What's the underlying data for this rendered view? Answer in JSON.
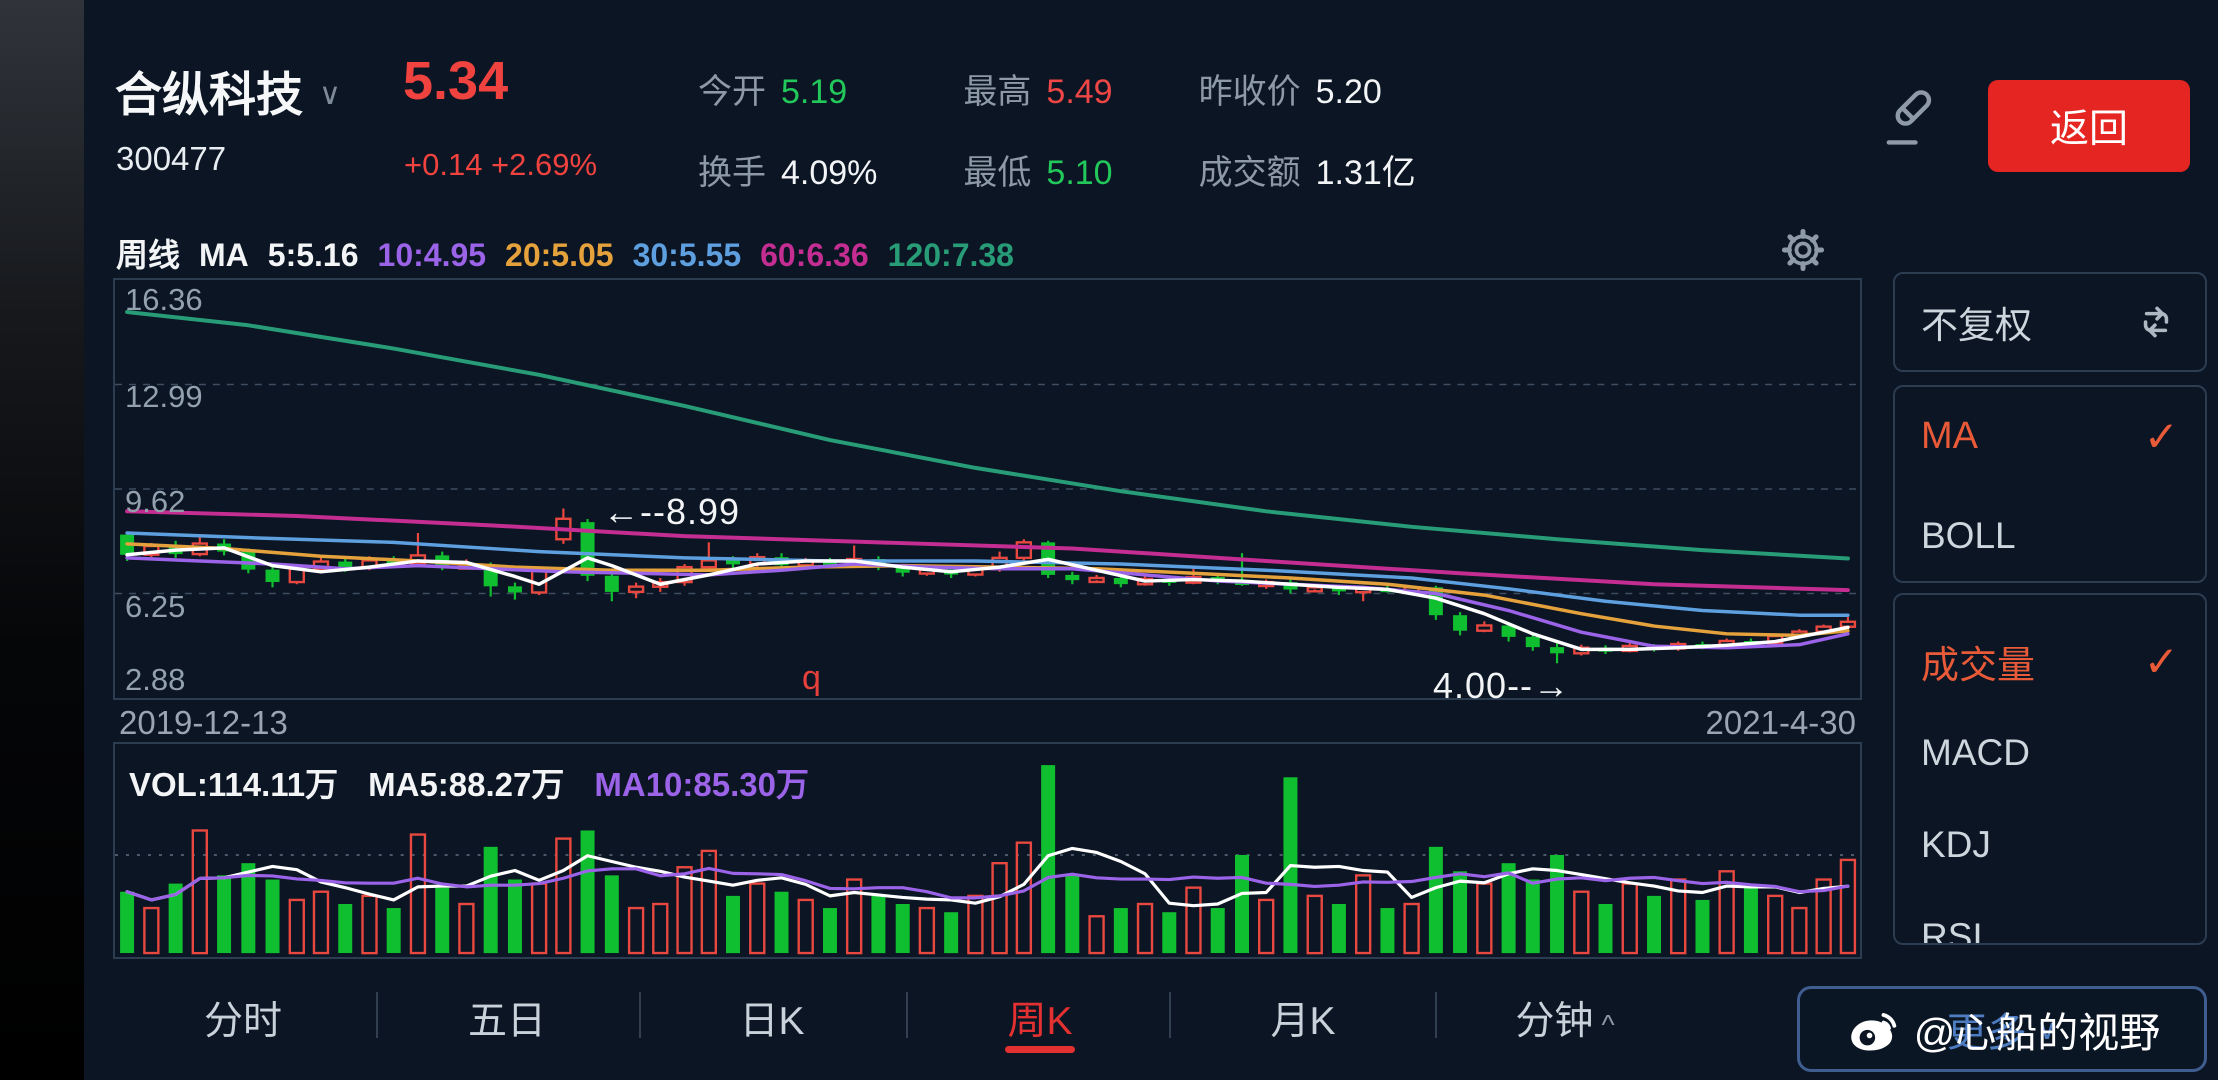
{
  "header": {
    "stock_name": "合纵科技",
    "stock_code": "300477",
    "price": "5.34",
    "change": "+0.14 +2.69%",
    "stats": [
      {
        "label": "今开",
        "value": "5.19",
        "color": "green"
      },
      {
        "label": "最高",
        "value": "5.49",
        "color": "red"
      },
      {
        "label": "昨收价",
        "value": "5.20",
        "color": "white"
      },
      {
        "label": "换手",
        "value": "4.09%",
        "color": "white"
      },
      {
        "label": "最低",
        "value": "5.10",
        "color": "green"
      },
      {
        "label": "成交额",
        "value": "1.31亿",
        "color": "white"
      }
    ],
    "back_label": "返回"
  },
  "indicator_bar": {
    "period_label": "周线",
    "ma_prefix": "MA",
    "items": [
      {
        "text": "5:5.16",
        "color": "#f2f4f6"
      },
      {
        "text": "10:4.95",
        "color": "#9b63e8"
      },
      {
        "text": "20:5.05",
        "color": "#e5a23c"
      },
      {
        "text": "30:5.55",
        "color": "#5e9fe0"
      },
      {
        "text": "60:6.36",
        "color": "#c42d92"
      },
      {
        "text": "120:7.38",
        "color": "#279c77"
      }
    ]
  },
  "dates": {
    "start": "2019-12-13",
    "end": "2021-4-30"
  },
  "volume_pane": {
    "vol_label": "VOL:114.11万",
    "ma5_label": "MA5:88.27万",
    "ma10_label": "MA10:85.30万"
  },
  "sidebar": {
    "adjust_box": {
      "label": "不复权"
    },
    "overlay_box": {
      "items": [
        {
          "label": "MA",
          "active": true
        },
        {
          "label": "BOLL",
          "active": false
        }
      ]
    },
    "indicator_box": {
      "items": [
        {
          "label": "成交量",
          "active": true
        },
        {
          "label": "MACD",
          "active": false
        },
        {
          "label": "KDJ",
          "active": false
        },
        {
          "label": "RSI",
          "active": false
        }
      ]
    }
  },
  "tabs": [
    {
      "label": "分时",
      "active": false
    },
    {
      "label": "五日",
      "active": false
    },
    {
      "label": "日K",
      "active": false
    },
    {
      "label": "周K",
      "active": true
    },
    {
      "label": "月K",
      "active": false
    },
    {
      "label": "分钟",
      "active": false,
      "caret": "^"
    }
  ],
  "watermark": {
    "behind_label": "更多",
    "behind_caret": "∨",
    "text": "@心船的视野"
  },
  "chart_data": {
    "type": "candlestick",
    "period": "weekly",
    "title": "合纵科技 300477 周K",
    "x_range": [
      "2019-12-13",
      "2021-4-30"
    ],
    "ylim": [
      2.88,
      16.36
    ],
    "y_ticks": [
      16.36,
      12.99,
      9.62,
      6.25,
      2.88
    ],
    "colors": {
      "up": "#e8483f",
      "down": "#10bf2f"
    },
    "candles": [
      [
        8.15,
        8.25,
        7.3,
        7.5
      ],
      [
        7.5,
        7.88,
        7.42,
        7.78
      ],
      [
        7.78,
        7.95,
        7.4,
        7.52
      ],
      [
        7.52,
        8.1,
        7.45,
        7.86
      ],
      [
        7.86,
        8.0,
        7.48,
        7.6
      ],
      [
        7.6,
        7.7,
        6.9,
        7.02
      ],
      [
        7.02,
        7.15,
        6.45,
        6.62
      ],
      [
        6.62,
        7.15,
        6.55,
        7.05
      ],
      [
        7.05,
        7.45,
        6.95,
        7.28
      ],
      [
        7.28,
        7.4,
        6.95,
        7.1
      ],
      [
        7.1,
        7.45,
        7.0,
        7.32
      ],
      [
        7.32,
        7.45,
        7.08,
        7.2
      ],
      [
        7.2,
        8.2,
        7.12,
        7.48
      ],
      [
        7.48,
        7.6,
        7.0,
        7.12
      ],
      [
        7.12,
        7.35,
        7.02,
        7.18
      ],
      [
        7.18,
        7.25,
        6.15,
        6.48
      ],
      [
        6.48,
        6.6,
        6.05,
        6.28
      ],
      [
        6.28,
        7.1,
        6.2,
        7.0
      ],
      [
        8.0,
        8.99,
        7.85,
        8.66
      ],
      [
        8.55,
        8.65,
        6.65,
        6.82
      ],
      [
        6.82,
        7.0,
        6.0,
        6.3
      ],
      [
        6.3,
        6.6,
        6.1,
        6.47
      ],
      [
        6.47,
        6.75,
        6.3,
        6.62
      ],
      [
        6.62,
        7.2,
        6.5,
        7.1
      ],
      [
        7.1,
        7.9,
        7.0,
        7.32
      ],
      [
        7.32,
        7.45,
        7.05,
        7.2
      ],
      [
        7.2,
        7.55,
        7.1,
        7.42
      ],
      [
        7.42,
        7.55,
        7.05,
        7.16
      ],
      [
        7.16,
        7.4,
        7.05,
        7.3
      ],
      [
        7.3,
        7.4,
        7.08,
        7.2
      ],
      [
        7.2,
        7.8,
        7.1,
        7.36
      ],
      [
        7.36,
        7.45,
        7.0,
        7.11
      ],
      [
        7.11,
        7.2,
        6.8,
        6.92
      ],
      [
        6.92,
        7.1,
        6.82,
        7.02
      ],
      [
        7.02,
        7.1,
        6.75,
        6.86
      ],
      [
        6.86,
        7.15,
        6.8,
        7.03
      ],
      [
        7.03,
        7.6,
        6.95,
        7.4
      ],
      [
        7.4,
        8.0,
        7.3,
        7.9
      ],
      [
        7.9,
        7.95,
        6.75,
        6.85
      ],
      [
        6.85,
        6.95,
        6.55,
        6.68
      ],
      [
        6.68,
        6.85,
        6.6,
        6.75
      ],
      [
        6.75,
        6.8,
        6.45,
        6.55
      ],
      [
        6.55,
        6.8,
        6.5,
        6.72
      ],
      [
        6.72,
        6.8,
        6.5,
        6.6
      ],
      [
        6.6,
        7.1,
        6.55,
        6.78
      ],
      [
        6.78,
        6.85,
        6.55,
        6.65
      ],
      [
        6.65,
        7.55,
        6.5,
        6.58
      ],
      [
        6.58,
        6.7,
        6.4,
        6.62
      ],
      [
        6.62,
        6.7,
        6.25,
        6.38
      ],
      [
        6.38,
        6.55,
        6.3,
        6.45
      ],
      [
        6.45,
        6.5,
        6.2,
        6.32
      ],
      [
        6.32,
        6.5,
        6.0,
        6.42
      ],
      [
        6.42,
        6.55,
        6.28,
        6.36
      ],
      [
        6.36,
        6.5,
        6.25,
        6.45
      ],
      [
        6.45,
        6.5,
        5.4,
        5.55
      ],
      [
        5.55,
        5.65,
        4.9,
        5.05
      ],
      [
        5.05,
        5.35,
        5.0,
        5.22
      ],
      [
        5.22,
        5.3,
        4.7,
        4.85
      ],
      [
        4.85,
        4.95,
        4.4,
        4.52
      ],
      [
        4.52,
        4.75,
        4.0,
        4.32
      ],
      [
        4.32,
        4.6,
        4.25,
        4.5
      ],
      [
        4.5,
        4.58,
        4.3,
        4.4
      ],
      [
        4.4,
        4.65,
        4.35,
        4.56
      ],
      [
        4.56,
        4.62,
        4.38,
        4.48
      ],
      [
        4.48,
        4.7,
        4.4,
        4.62
      ],
      [
        4.62,
        4.7,
        4.45,
        4.53
      ],
      [
        4.53,
        4.8,
        4.48,
        4.72
      ],
      [
        4.72,
        4.8,
        4.55,
        4.65
      ],
      [
        4.65,
        4.95,
        4.6,
        4.88
      ],
      [
        4.88,
        5.1,
        4.8,
        5.02
      ],
      [
        5.02,
        5.25,
        4.95,
        5.18
      ],
      [
        5.18,
        5.49,
        5.1,
        5.34
      ]
    ],
    "volumes": [
      75,
      55,
      85,
      150,
      95,
      110,
      90,
      65,
      75,
      60,
      70,
      55,
      145,
      80,
      60,
      130,
      90,
      85,
      140,
      150,
      95,
      55,
      60,
      105,
      125,
      70,
      85,
      75,
      65,
      55,
      90,
      70,
      60,
      55,
      50,
      70,
      110,
      135,
      230,
      95,
      45,
      55,
      60,
      50,
      80,
      55,
      120,
      65,
      215,
      70,
      60,
      95,
      55,
      60,
      130,
      100,
      85,
      110,
      90,
      120,
      75,
      60,
      85,
      70,
      90,
      65,
      100,
      80,
      70,
      55,
      90,
      114
    ],
    "volume_ylim": [
      0,
      240
    ],
    "volume_grid": 120,
    "volume_ma": [
      {
        "name": "MA5",
        "window": 5,
        "color": "#ffffff"
      },
      {
        "name": "MA10",
        "window": 10,
        "color": "#9b63e8"
      }
    ],
    "ma_lines": [
      {
        "name": "MA120",
        "color": "#279c77",
        "width": 4,
        "points": [
          [
            1,
            15.33
          ],
          [
            6,
            14.9
          ],
          [
            12,
            14.15
          ],
          [
            18,
            13.3
          ],
          [
            24,
            12.3
          ],
          [
            30,
            11.2
          ],
          [
            36,
            10.3
          ],
          [
            42,
            9.55
          ],
          [
            48,
            8.9
          ],
          [
            54,
            8.4
          ],
          [
            60,
            8.0
          ],
          [
            66,
            7.65
          ],
          [
            72,
            7.38
          ]
        ]
      },
      {
        "name": "MA60",
        "color": "#c42d92",
        "width": 4,
        "points": [
          [
            1,
            8.9
          ],
          [
            8,
            8.75
          ],
          [
            16,
            8.45
          ],
          [
            24,
            8.1
          ],
          [
            32,
            7.9
          ],
          [
            40,
            7.7
          ],
          [
            48,
            7.3
          ],
          [
            56,
            6.9
          ],
          [
            64,
            6.55
          ],
          [
            72,
            6.36
          ]
        ]
      },
      {
        "name": "MA30",
        "color": "#5e9fe0",
        "width": 3.5,
        "points": [
          [
            1,
            8.2
          ],
          [
            6,
            8.05
          ],
          [
            12,
            7.9
          ],
          [
            18,
            7.6
          ],
          [
            24,
            7.4
          ],
          [
            30,
            7.3
          ],
          [
            36,
            7.3
          ],
          [
            42,
            7.2
          ],
          [
            48,
            7.0
          ],
          [
            54,
            6.75
          ],
          [
            58,
            6.4
          ],
          [
            62,
            6.0
          ],
          [
            66,
            5.7
          ],
          [
            70,
            5.55
          ],
          [
            72,
            5.55
          ]
        ]
      },
      {
        "name": "MA20",
        "color": "#e5a23c",
        "width": 3.5,
        "points": [
          [
            1,
            7.85
          ],
          [
            5,
            7.7
          ],
          [
            9,
            7.45
          ],
          [
            13,
            7.3
          ],
          [
            17,
            7.1
          ],
          [
            21,
            7.0
          ],
          [
            25,
            7.0
          ],
          [
            29,
            7.1
          ],
          [
            33,
            7.15
          ],
          [
            37,
            7.1
          ],
          [
            41,
            7.05
          ],
          [
            45,
            6.9
          ],
          [
            49,
            6.75
          ],
          [
            53,
            6.55
          ],
          [
            57,
            6.2
          ],
          [
            61,
            5.6
          ],
          [
            64,
            5.2
          ],
          [
            67,
            4.95
          ],
          [
            70,
            4.9
          ],
          [
            72,
            5.05
          ]
        ]
      },
      {
        "name": "MA10",
        "color": "#9b63e8",
        "width": 3.5,
        "points": [
          [
            1,
            7.4
          ],
          [
            4,
            7.3
          ],
          [
            7,
            7.2
          ],
          [
            10,
            7.05
          ],
          [
            13,
            7.15
          ],
          [
            16,
            7.05
          ],
          [
            19,
            6.95
          ],
          [
            22,
            6.9
          ],
          [
            25,
            6.85
          ],
          [
            28,
            7.0
          ],
          [
            31,
            7.2
          ],
          [
            34,
            7.1
          ],
          [
            37,
            7.05
          ],
          [
            40,
            7.05
          ],
          [
            43,
            6.85
          ],
          [
            46,
            6.65
          ],
          [
            49,
            6.55
          ],
          [
            52,
            6.45
          ],
          [
            55,
            6.25
          ],
          [
            58,
            5.7
          ],
          [
            61,
            5.0
          ],
          [
            64,
            4.55
          ],
          [
            67,
            4.5
          ],
          [
            70,
            4.6
          ],
          [
            72,
            4.95
          ]
        ]
      },
      {
        "name": "MA5",
        "color": "#ffffff",
        "width": 3.5,
        "points": [
          [
            1,
            7.5
          ],
          [
            3,
            7.65
          ],
          [
            5,
            7.72
          ],
          [
            7,
            7.15
          ],
          [
            9,
            6.95
          ],
          [
            11,
            7.1
          ],
          [
            13,
            7.3
          ],
          [
            15,
            7.25
          ],
          [
            17,
            6.8
          ],
          [
            18,
            6.55
          ],
          [
            20,
            7.4
          ],
          [
            21,
            7.15
          ],
          [
            23,
            6.55
          ],
          [
            25,
            6.85
          ],
          [
            27,
            7.2
          ],
          [
            29,
            7.3
          ],
          [
            31,
            7.3
          ],
          [
            33,
            7.1
          ],
          [
            35,
            6.95
          ],
          [
            37,
            7.1
          ],
          [
            39,
            7.35
          ],
          [
            41,
            7.0
          ],
          [
            43,
            6.65
          ],
          [
            45,
            6.7
          ],
          [
            47,
            6.65
          ],
          [
            49,
            6.55
          ],
          [
            51,
            6.45
          ],
          [
            53,
            6.38
          ],
          [
            55,
            6.1
          ],
          [
            57,
            5.6
          ],
          [
            59,
            4.95
          ],
          [
            61,
            4.45
          ],
          [
            63,
            4.45
          ],
          [
            65,
            4.5
          ],
          [
            67,
            4.58
          ],
          [
            69,
            4.7
          ],
          [
            71,
            5.0
          ],
          [
            72,
            5.16
          ]
        ]
      }
    ],
    "annotations": [
      {
        "text": "←--8.99",
        "week": 20.6,
        "price": 8.99,
        "dy": -19,
        "size": 36,
        "color": "#f2f4f6"
      },
      {
        "text": "4.00--→",
        "week": 54.8,
        "price": 4.0,
        "dy": 0,
        "size": 36,
        "color": "#f2f4f6"
      },
      {
        "text": "q",
        "week": 28.8,
        "price": 4.2,
        "dy": 0,
        "size": 34,
        "color": "#e8413c"
      }
    ]
  }
}
